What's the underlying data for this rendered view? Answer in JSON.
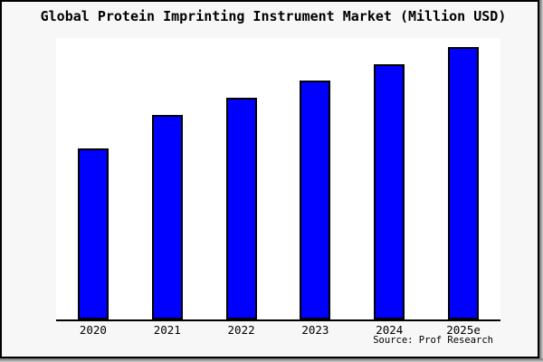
{
  "chart_data": {
    "type": "bar",
    "title": "Global Protein Imprinting Instrument Market (Million USD)",
    "categories": [
      "2020",
      "2021",
      "2022",
      "2023",
      "2024",
      "2025e"
    ],
    "values": [
      62.8,
      75.1,
      81.4,
      87.7,
      93.7,
      100
    ],
    "value_note": "no y-axis or data labels are rendered; values are relative bar heights normalized so 2025e = 100",
    "xlabel": "",
    "ylabel": "",
    "ylim_relative": [
      0,
      103.3
    ],
    "y_axis_visible": false,
    "grid": false,
    "legend": false,
    "source": "Source: Prof Research",
    "bar_fill_color": "#0000ff",
    "bar_edge_color": "#000000",
    "figure_bg_color": "#f7f7f7",
    "plot_bg_color": "#ffffff",
    "axis_color": "#000000",
    "frame_border_color": "#000000",
    "shadow_color": "#9e9e9e",
    "title_color": "#000000"
  }
}
